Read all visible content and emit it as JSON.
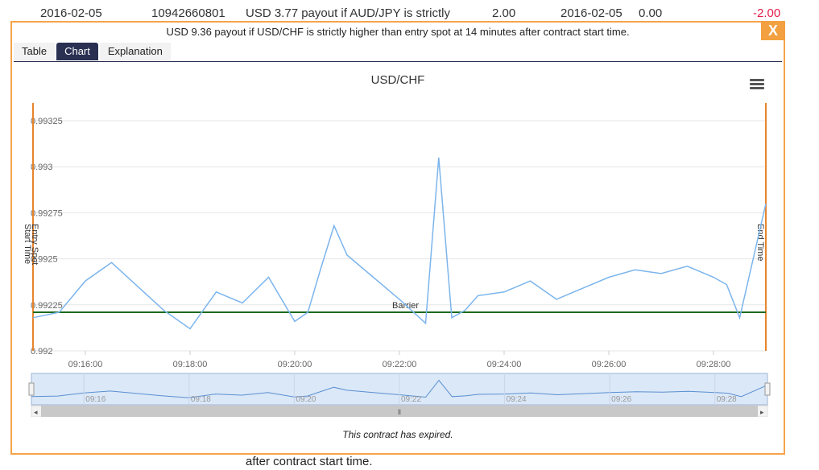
{
  "background_row": {
    "date": "2016-02-05",
    "ref_id": "10942660801",
    "description": "USD 3.77 payout if AUD/JPY is strictly",
    "buy_price": "2.00",
    "sell_date": "2016-02-05",
    "sell_price": "0.00",
    "profit_loss": "-2.00"
  },
  "background_footer": "after contract start time.",
  "dialog": {
    "title": "USD 9.36 payout if USD/CHF is strictly higher than entry spot at 14 minutes after contract start time.",
    "close_label": "X",
    "tabs": [
      {
        "label": "Table"
      },
      {
        "label": "Chart"
      },
      {
        "label": "Explanation"
      }
    ],
    "active_tab": "Chart",
    "footer_message": "This contract has expired."
  },
  "colors": {
    "accent": "#f6a34a",
    "tab_active": "#2a3052",
    "series": "#7cb5ec",
    "barrier": "#1b6b1b",
    "time_marker": "#e8852c",
    "negative": "#e31c4b"
  },
  "chart_data": {
    "type": "line",
    "title": "USD/CHF",
    "y_ticks": [
      "0.992",
      "0.99225",
      "0.9925",
      "0.99275",
      "0.993",
      "0.99325"
    ],
    "x_ticks": [
      "09:16:00",
      "09:18:00",
      "09:20:00",
      "09:22:00",
      "09:24:00",
      "09:26:00",
      "09:28:00"
    ],
    "navigator_ticks": [
      "09:16",
      "09:18",
      "09:20",
      "09:22",
      "09:24",
      "09:26",
      "09:28"
    ],
    "ylim": [
      0.992,
      0.99325
    ],
    "xlim": [
      "09:15:00",
      "09:29:00"
    ],
    "grid": true,
    "barrier": {
      "label": "Barrier",
      "value": 0.99221
    },
    "plot_lines": [
      {
        "label": "Start Time",
        "x": "09:15:00"
      },
      {
        "label": "Entry Spot",
        "x": "09:15:00"
      },
      {
        "label": "End Time",
        "x": "09:29:00"
      }
    ],
    "series": [
      {
        "x": [
          "09:15:00",
          "09:15:30",
          "09:16:00",
          "09:16:30",
          "09:17:00",
          "09:17:30",
          "09:18:00",
          "09:18:30",
          "09:19:00",
          "09:19:30",
          "09:20:00",
          "09:20:15",
          "09:20:30",
          "09:20:45",
          "09:21:00",
          "09:21:30",
          "09:22:00",
          "09:22:30",
          "09:22:45",
          "09:23:00",
          "09:23:15",
          "09:23:30",
          "09:24:00",
          "09:24:30",
          "09:25:00",
          "09:25:30",
          "09:26:00",
          "09:26:30",
          "09:27:00",
          "09:27:30",
          "09:28:00",
          "09:28:15",
          "09:28:30",
          "09:29:00"
        ],
        "values": [
          0.99218,
          0.99221,
          0.99238,
          0.99248,
          0.99235,
          0.99222,
          0.99212,
          0.99232,
          0.99226,
          0.9924,
          0.99216,
          0.99221,
          0.99245,
          0.99268,
          0.99252,
          0.9924,
          0.99228,
          0.99215,
          0.99305,
          0.99218,
          0.99222,
          0.9923,
          0.99232,
          0.99238,
          0.99228,
          0.99234,
          0.9924,
          0.99244,
          0.99242,
          0.99246,
          0.9924,
          0.99236,
          0.99218,
          0.9928
        ]
      }
    ]
  }
}
